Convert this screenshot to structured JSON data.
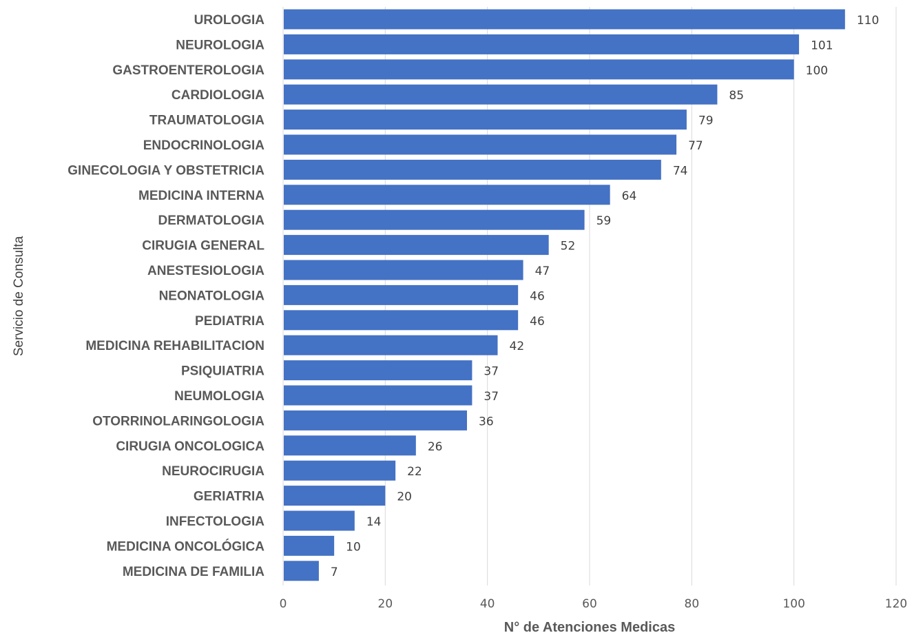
{
  "chart_data": {
    "type": "bar",
    "orientation": "horizontal",
    "categories": [
      "UROLOGIA",
      "NEUROLOGIA",
      "GASTROENTEROLOGIA",
      "CARDIOLOGIA",
      "TRAUMATOLOGIA",
      "ENDOCRINOLOGIA",
      "GINECOLOGIA Y OBSTETRICIA",
      "MEDICINA INTERNA",
      "DERMATOLOGIA",
      "CIRUGIA GENERAL",
      "ANESTESIOLOGIA",
      "NEONATOLOGIA",
      "PEDIATRIA",
      "MEDICINA REHABILITACION",
      "PSIQUIATRIA",
      "NEUMOLOGIA",
      "OTORRINOLARINGOLOGIA",
      "CIRUGIA ONCOLOGICA",
      "NEUROCIRUGIA",
      "GERIATRIA",
      "INFECTOLOGIA",
      "MEDICINA ONCOLÓGICA",
      "MEDICINA DE FAMILIA"
    ],
    "values": [
      110,
      101,
      100,
      85,
      79,
      77,
      74,
      64,
      59,
      52,
      47,
      46,
      46,
      42,
      37,
      37,
      36,
      26,
      22,
      20,
      14,
      10,
      7
    ],
    "title": "",
    "xlabel": "N° de Atenciones Medicas",
    "ylabel": "Servicio de Consulta",
    "xlim": [
      0,
      120
    ],
    "xticks": [
      0,
      20,
      40,
      60,
      80,
      100,
      120
    ],
    "grid": true,
    "data_labels": true,
    "legend": "none",
    "bar_color": "#4472c4"
  }
}
